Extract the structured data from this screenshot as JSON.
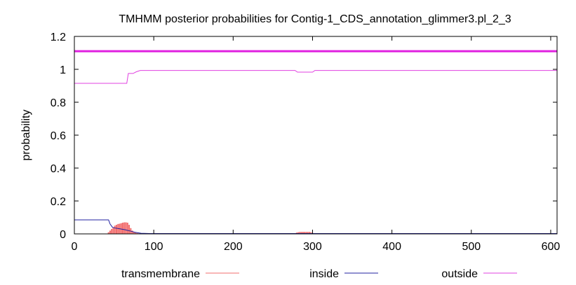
{
  "chart_data": {
    "type": "line",
    "title": "TMHMM posterior probabilities for Contig-1_CDS_annotation_glimmer3.pl_2_3",
    "xlabel": "",
    "ylabel": "probability",
    "xlim": [
      0,
      608
    ],
    "ylim": [
      0,
      1.2
    ],
    "xticks": [
      0,
      100,
      200,
      300,
      400,
      500,
      600
    ],
    "yticks": [
      0,
      0.2,
      0.4,
      0.6,
      0.8,
      1,
      1.2
    ],
    "ytick_labels": [
      "0",
      "0.2",
      "0.4",
      "0.6",
      "0.8",
      "1",
      "1.2"
    ],
    "legend_position": "bottom",
    "grid": false,
    "topology_line": {
      "y": 1.11,
      "color": "#e020e0"
    },
    "series": [
      {
        "name": "transmembrane",
        "color": "#f26c6c",
        "style": "impulse",
        "points": [
          [
            43,
            0.01
          ],
          [
            45,
            0.02
          ],
          [
            47,
            0.03
          ],
          [
            49,
            0.04
          ],
          [
            51,
            0.05
          ],
          [
            53,
            0.055
          ],
          [
            55,
            0.06
          ],
          [
            57,
            0.062
          ],
          [
            59,
            0.065
          ],
          [
            61,
            0.068
          ],
          [
            63,
            0.07
          ],
          [
            65,
            0.07
          ],
          [
            67,
            0.068
          ],
          [
            69,
            0.055
          ],
          [
            71,
            0.035
          ],
          [
            73,
            0.02
          ],
          [
            75,
            0.012
          ],
          [
            77,
            0.008
          ],
          [
            79,
            0.005
          ],
          [
            81,
            0.003
          ],
          [
            83,
            0.002
          ],
          [
            278,
            0.004
          ],
          [
            280,
            0.008
          ],
          [
            282,
            0.01
          ],
          [
            284,
            0.012
          ],
          [
            286,
            0.012
          ],
          [
            288,
            0.012
          ],
          [
            290,
            0.012
          ],
          [
            292,
            0.012
          ],
          [
            294,
            0.012
          ],
          [
            296,
            0.012
          ],
          [
            298,
            0.01
          ],
          [
            300,
            0.006
          ],
          [
            302,
            0.003
          ]
        ]
      },
      {
        "name": "inside",
        "color": "#2020a0",
        "style": "line",
        "points": [
          [
            0,
            0.085
          ],
          [
            43,
            0.085
          ],
          [
            45,
            0.06
          ],
          [
            48,
            0.04
          ],
          [
            52,
            0.035
          ],
          [
            58,
            0.03
          ],
          [
            64,
            0.025
          ],
          [
            70,
            0.018
          ],
          [
            76,
            0.01
          ],
          [
            84,
            0.004
          ],
          [
            95,
            0.002
          ],
          [
            608,
            0.002
          ]
        ]
      },
      {
        "name": "outside",
        "color": "#e040e0",
        "style": "line",
        "points": [
          [
            0,
            0.915
          ],
          [
            66,
            0.915
          ],
          [
            68,
            0.975
          ],
          [
            74,
            0.975
          ],
          [
            78,
            0.985
          ],
          [
            83,
            0.993
          ],
          [
            278,
            0.993
          ],
          [
            281,
            0.983
          ],
          [
            300,
            0.983
          ],
          [
            303,
            0.993
          ],
          [
            608,
            0.993
          ]
        ]
      }
    ]
  }
}
